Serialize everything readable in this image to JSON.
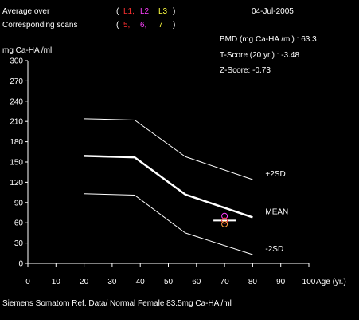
{
  "header": {
    "average_over_label": "Average over",
    "corresponding_scans_label": "Corresponding scans",
    "date": "04-Jul-2005",
    "open_paren": "(",
    "close_paren": ")",
    "regions": [
      {
        "label": "L1,",
        "color": "#ff3030"
      },
      {
        "label": "L2,",
        "color": "#ff40ff"
      },
      {
        "label": "L3",
        "color": "#ffff40"
      }
    ],
    "scans": [
      {
        "label": "5,",
        "color": "#ff3030"
      },
      {
        "label": "6,",
        "color": "#ff40ff"
      },
      {
        "label": "7",
        "color": "#ffff40"
      }
    ]
  },
  "results": {
    "bmd": "BMD (mg Ca-HA /ml) : 63.3",
    "t_score": "T-Score (20 yr.) : -3.48",
    "z_score": "Z-Score: -0.73"
  },
  "footer": {
    "reference": "Siemens Somatom Ref. Data/ Normal Female 83.5mg Ca-HA /ml"
  },
  "chart_data": {
    "type": "line",
    "ylabel": "mg Ca-HA /ml",
    "xlabel": "Age (yr.)",
    "xlim": [
      0,
      100
    ],
    "ylim": [
      0,
      300
    ],
    "x_ticks": [
      0,
      10,
      20,
      30,
      40,
      50,
      60,
      70,
      80,
      90,
      100
    ],
    "y_ticks": [
      0,
      30,
      60,
      90,
      120,
      150,
      180,
      210,
      240,
      270,
      300
    ],
    "grid": false,
    "series": [
      {
        "name": "+2SD",
        "color": "#ffffff",
        "width": 1,
        "x": [
          20,
          38,
          56,
          80
        ],
        "y": [
          214,
          212,
          158,
          124
        ]
      },
      {
        "name": "MEAN",
        "color": "#ffffff",
        "width": 2.5,
        "x": [
          20,
          38,
          56,
          80
        ],
        "y": [
          159,
          157,
          102,
          68
        ]
      },
      {
        "name": "-2SD",
        "color": "#ffffff",
        "width": 1,
        "x": [
          20,
          38,
          56,
          80
        ],
        "y": [
          103,
          101,
          45,
          13
        ]
      }
    ],
    "patient": {
      "age": 70,
      "bmd": 63.3,
      "marker_color": "#ffffff",
      "scan_points": [
        {
          "y": 70,
          "color": "#ff40ff"
        },
        {
          "y": 63,
          "color": "#ff3030"
        },
        {
          "y": 58,
          "color": "#ffa040"
        }
      ]
    }
  }
}
